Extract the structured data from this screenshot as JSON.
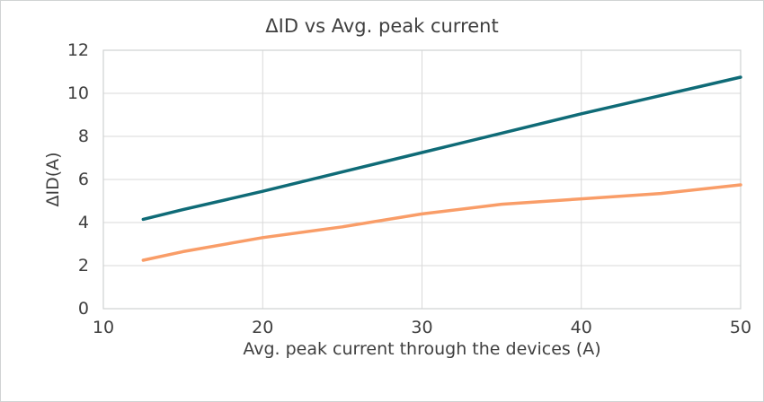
{
  "window": {
    "background_color": "#ffffff",
    "border_color": "#d0d3d4"
  },
  "chart_data": {
    "type": "line",
    "title": "ΔID vs Avg. peak current",
    "xlabel": "Avg. peak current through the devices (A)",
    "ylabel": "ΔID(A)",
    "xlim": [
      10,
      50
    ],
    "ylim": [
      0,
      12
    ],
    "x_ticks": [
      10,
      20,
      30,
      40,
      50
    ],
    "y_ticks": [
      0,
      2,
      4,
      6,
      8,
      10,
      12
    ],
    "grid": true,
    "legend_position": "none",
    "x": [
      12.5,
      15,
      20,
      25,
      30,
      35,
      40,
      45,
      50
    ],
    "series": [
      {
        "name": "upper-teal-line",
        "color": "#0f6b77",
        "values": [
          4.15,
          4.6,
          5.45,
          6.35,
          7.25,
          8.15,
          9.05,
          9.9,
          10.75
        ]
      },
      {
        "name": "lower-orange-line",
        "color": "#f99d68",
        "values": [
          2.25,
          2.65,
          3.3,
          3.8,
          4.4,
          4.85,
          5.1,
          5.35,
          5.75
        ]
      }
    ],
    "styles": {
      "grid_color": "#d9d9d9",
      "plot_border_color": "#cfd2d3",
      "text_color": "#3f3f3f",
      "line_width": 3.5
    }
  }
}
